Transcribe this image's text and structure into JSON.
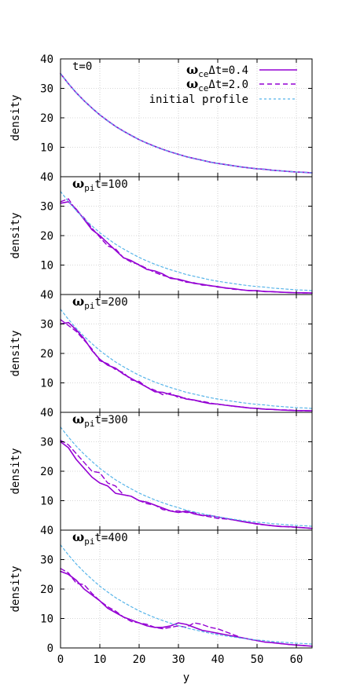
{
  "figure": {
    "x_axis_label": "y",
    "legend": {
      "entries": [
        {
          "prefix": "ω",
          "sub": "ce",
          "suffix": "Δt=0.4",
          "color": "#9400d3",
          "style": "solid"
        },
        {
          "prefix": "ω",
          "sub": "ce",
          "suffix": "Δt=2.0",
          "color": "#9400d3",
          "style": "dashed"
        },
        {
          "text": "initial profile",
          "color": "#56b4e9",
          "style": "dotted"
        }
      ]
    },
    "colors": {
      "dt04": "#9400d3",
      "dt20": "#9400d3",
      "initial": "#56b4e9",
      "grid": "#b0b0b0"
    }
  },
  "chart_data": [
    {
      "type": "line",
      "panel_label": {
        "text": "t=0"
      },
      "ylabel": "density",
      "xlim": [
        0,
        64
      ],
      "ylim": [
        0,
        40
      ],
      "grid": true,
      "legend_position": "top-right",
      "x_ticks": [
        0,
        10,
        20,
        30,
        40,
        50,
        60
      ],
      "y_tick_labels": [
        "10",
        "20",
        "30",
        "40"
      ],
      "x": [
        0,
        2,
        4,
        6,
        8,
        10,
        12,
        14,
        16,
        18,
        20,
        22,
        24,
        26,
        28,
        30,
        32,
        34,
        36,
        38,
        40,
        42,
        44,
        46,
        48,
        50,
        52,
        54,
        56,
        58,
        60,
        62,
        64
      ],
      "series": [
        {
          "name": "ωceΔt=0.4",
          "key": "dt04",
          "y": [
            35.0,
            31.6,
            28.5,
            25.8,
            23.3,
            21.0,
            19.0,
            17.1,
            15.5,
            14.0,
            12.6,
            11.4,
            10.3,
            9.3,
            8.4,
            7.6,
            6.8,
            6.2,
            5.6,
            5.0,
            4.5,
            4.1,
            3.7,
            3.3,
            3.0,
            2.7,
            2.5,
            2.2,
            2.0,
            1.8,
            1.6,
            1.5,
            1.3
          ]
        },
        {
          "name": "ωceΔt=2.0",
          "key": "dt20",
          "y": [
            35.0,
            31.6,
            28.5,
            25.8,
            23.3,
            21.0,
            19.0,
            17.1,
            15.5,
            14.0,
            12.6,
            11.4,
            10.3,
            9.3,
            8.4,
            7.6,
            6.8,
            6.2,
            5.6,
            5.0,
            4.5,
            4.1,
            3.7,
            3.3,
            3.0,
            2.7,
            2.5,
            2.2,
            2.0,
            1.8,
            1.6,
            1.5,
            1.3
          ]
        },
        {
          "name": "initial profile",
          "key": "initial",
          "y": [
            35.0,
            31.6,
            28.5,
            25.8,
            23.3,
            21.0,
            19.0,
            17.1,
            15.5,
            14.0,
            12.6,
            11.4,
            10.3,
            9.3,
            8.4,
            7.6,
            6.8,
            6.2,
            5.6,
            5.0,
            4.5,
            4.1,
            3.7,
            3.3,
            3.0,
            2.7,
            2.5,
            2.2,
            2.0,
            1.8,
            1.6,
            1.5,
            1.3
          ]
        }
      ]
    },
    {
      "type": "line",
      "panel_label": {
        "prefix": "ω",
        "sub": "pi",
        "suffix": "t=100"
      },
      "ylabel": "density",
      "xlim": [
        0,
        64
      ],
      "ylim": [
        0,
        40
      ],
      "grid": true,
      "x_ticks": [
        0,
        10,
        20,
        30,
        40,
        50,
        60
      ],
      "y_tick_labels": [
        "10",
        "20",
        "30",
        "40"
      ],
      "x": [
        0,
        2,
        4,
        6,
        8,
        10,
        12,
        14,
        16,
        18,
        20,
        22,
        24,
        26,
        28,
        30,
        32,
        34,
        36,
        38,
        40,
        42,
        44,
        46,
        48,
        50,
        52,
        54,
        56,
        58,
        60,
        62,
        64
      ],
      "series": [
        {
          "name": "ωceΔt=0.4",
          "key": "dt04",
          "y": [
            31.0,
            31.5,
            29.0,
            25.5,
            22.0,
            20.0,
            17.5,
            15.0,
            12.5,
            11.5,
            10.0,
            8.5,
            8.0,
            7.0,
            5.5,
            5.2,
            4.5,
            3.8,
            3.5,
            3.0,
            2.7,
            2.2,
            2.0,
            1.6,
            1.3,
            1.3,
            1.0,
            1.0,
            0.8,
            0.7,
            0.6,
            0.6,
            0.5
          ]
        },
        {
          "name": "ωceΔt=2.0",
          "key": "dt20",
          "y": [
            31.5,
            32.5,
            28.5,
            26.0,
            22.5,
            19.5,
            16.5,
            15.5,
            12.5,
            11.0,
            10.2,
            8.8,
            7.5,
            6.5,
            5.8,
            5.0,
            4.2,
            4.0,
            3.2,
            3.1,
            2.5,
            2.3,
            1.8,
            1.6,
            1.4,
            1.2,
            1.1,
            0.9,
            0.8,
            0.7,
            0.6,
            0.5,
            0.5
          ]
        },
        {
          "name": "initial profile",
          "key": "initial",
          "y": [
            35.0,
            31.6,
            28.5,
            25.8,
            23.3,
            21.0,
            19.0,
            17.1,
            15.5,
            14.0,
            12.6,
            11.4,
            10.3,
            9.3,
            8.4,
            7.6,
            6.8,
            6.2,
            5.6,
            5.0,
            4.5,
            4.1,
            3.7,
            3.3,
            3.0,
            2.7,
            2.5,
            2.2,
            2.0,
            1.8,
            1.6,
            1.5,
            1.3
          ]
        }
      ]
    },
    {
      "type": "line",
      "panel_label": {
        "prefix": "ω",
        "sub": "pi",
        "suffix": "t=200"
      },
      "ylabel": "density",
      "xlim": [
        0,
        64
      ],
      "ylim": [
        0,
        40
      ],
      "grid": true,
      "x_ticks": [
        0,
        10,
        20,
        30,
        40,
        50,
        60
      ],
      "y_tick_labels": [
        "10",
        "20",
        "30",
        "40"
      ],
      "x": [
        0,
        2,
        4,
        6,
        8,
        10,
        12,
        14,
        16,
        18,
        20,
        22,
        24,
        26,
        28,
        30,
        32,
        34,
        36,
        38,
        40,
        42,
        44,
        46,
        48,
        50,
        52,
        54,
        56,
        58,
        60,
        62,
        64
      ],
      "series": [
        {
          "name": "ωceΔt=0.4",
          "key": "dt04",
          "y": [
            30.0,
            30.5,
            28.0,
            25.0,
            21.0,
            18.0,
            16.0,
            15.0,
            13.0,
            11.5,
            10.0,
            8.5,
            7.0,
            6.8,
            6.0,
            5.5,
            4.5,
            4.2,
            3.5,
            3.0,
            2.8,
            2.4,
            2.1,
            1.8,
            1.5,
            1.3,
            1.1,
            1.0,
            0.8,
            0.7,
            0.6,
            0.6,
            0.5
          ]
        },
        {
          "name": "ωceΔt=2.0",
          "key": "dt20",
          "y": [
            31.5,
            29.5,
            27.5,
            24.5,
            21.5,
            17.5,
            16.5,
            14.5,
            13.5,
            11.0,
            10.5,
            8.5,
            7.5,
            6.0,
            6.5,
            5.0,
            4.8,
            4.0,
            3.8,
            3.2,
            2.7,
            2.5,
            2.0,
            1.9,
            1.4,
            1.4,
            1.0,
            1.0,
            0.8,
            0.8,
            0.6,
            0.5,
            0.5
          ]
        },
        {
          "name": "initial profile",
          "key": "initial",
          "y": [
            35.0,
            31.6,
            28.5,
            25.8,
            23.3,
            21.0,
            19.0,
            17.1,
            15.5,
            14.0,
            12.6,
            11.4,
            10.3,
            9.3,
            8.4,
            7.6,
            6.8,
            6.2,
            5.6,
            5.0,
            4.5,
            4.1,
            3.7,
            3.3,
            3.0,
            2.7,
            2.5,
            2.2,
            2.0,
            1.8,
            1.6,
            1.5,
            1.3
          ]
        }
      ]
    },
    {
      "type": "line",
      "panel_label": {
        "prefix": "ω",
        "sub": "pi",
        "suffix": "t=300"
      },
      "ylabel": "density",
      "xlim": [
        0,
        64
      ],
      "ylim": [
        0,
        40
      ],
      "grid": true,
      "x_ticks": [
        0,
        10,
        20,
        30,
        40,
        50,
        60
      ],
      "y_tick_labels": [
        "10",
        "20",
        "30",
        "40"
      ],
      "x": [
        0,
        2,
        4,
        6,
        8,
        10,
        12,
        14,
        16,
        18,
        20,
        22,
        24,
        26,
        28,
        30,
        32,
        34,
        36,
        38,
        40,
        42,
        44,
        46,
        48,
        50,
        52,
        54,
        56,
        58,
        60,
        62,
        64
      ],
      "series": [
        {
          "name": "ωceΔt=0.4",
          "key": "dt04",
          "y": [
            30.0,
            28.0,
            24.0,
            21.0,
            18.0,
            16.0,
            15.0,
            12.5,
            12.0,
            11.5,
            10.0,
            9.5,
            8.5,
            7.5,
            6.5,
            6.0,
            6.5,
            5.5,
            5.0,
            5.0,
            4.5,
            4.0,
            3.5,
            3.0,
            2.5,
            2.2,
            1.8,
            1.5,
            1.2,
            1.2,
            1.0,
            0.8,
            0.6
          ]
        },
        {
          "name": "ωceΔt=2.0",
          "key": "dt20",
          "y": [
            30.5,
            29.0,
            26.0,
            23.0,
            20.0,
            19.5,
            16.0,
            15.0,
            12.0,
            11.5,
            10.0,
            9.0,
            8.5,
            7.0,
            6.5,
            6.5,
            6.0,
            6.0,
            5.0,
            4.5,
            4.0,
            3.8,
            3.5,
            3.0,
            2.6,
            2.0,
            1.8,
            1.5,
            1.3,
            1.1,
            1.0,
            0.8,
            0.6
          ]
        },
        {
          "name": "initial profile",
          "key": "initial",
          "y": [
            35.0,
            31.6,
            28.5,
            25.8,
            23.3,
            21.0,
            19.0,
            17.1,
            15.5,
            14.0,
            12.6,
            11.4,
            10.3,
            9.3,
            8.4,
            7.6,
            6.8,
            6.2,
            5.6,
            5.0,
            4.5,
            4.1,
            3.7,
            3.3,
            3.0,
            2.7,
            2.5,
            2.2,
            2.0,
            1.8,
            1.6,
            1.5,
            1.3
          ]
        }
      ]
    },
    {
      "type": "line",
      "panel_label": {
        "prefix": "ω",
        "sub": "pi",
        "suffix": "t=400"
      },
      "ylabel": "density",
      "xlim": [
        0,
        64
      ],
      "ylim": [
        0,
        40
      ],
      "grid": true,
      "x_ticks": [
        0,
        10,
        20,
        30,
        40,
        50,
        60
      ],
      "x_tick_labels": [
        "0",
        "10",
        "20",
        "30",
        "40",
        "50",
        "60"
      ],
      "y_tick_labels": [
        "0",
        "10",
        "20",
        "30",
        "40"
      ],
      "x": [
        0,
        2,
        4,
        6,
        8,
        10,
        12,
        14,
        16,
        18,
        20,
        22,
        24,
        26,
        28,
        30,
        32,
        34,
        36,
        38,
        40,
        42,
        44,
        46,
        48,
        50,
        52,
        54,
        56,
        58,
        60,
        62,
        64
      ],
      "series": [
        {
          "name": "ωceΔt=0.4",
          "key": "dt04",
          "y": [
            26.0,
            25.0,
            23.0,
            20.0,
            18.0,
            16.0,
            13.5,
            12.0,
            10.5,
            9.5,
            8.5,
            7.5,
            7.0,
            7.0,
            7.5,
            8.5,
            8.0,
            7.0,
            6.0,
            5.5,
            5.0,
            4.5,
            4.0,
            3.5,
            3.0,
            2.5,
            2.0,
            1.8,
            1.5,
            1.2,
            1.0,
            0.8,
            0.6
          ]
        },
        {
          "name": "ωceΔt=2.0",
          "key": "dt20",
          "y": [
            27.0,
            25.5,
            22.0,
            21.5,
            18.5,
            16.0,
            14.0,
            12.5,
            10.5,
            9.0,
            8.5,
            8.0,
            7.0,
            6.5,
            7.0,
            7.5,
            7.0,
            8.5,
            8.0,
            7.0,
            6.5,
            5.5,
            4.5,
            3.5,
            3.0,
            2.5,
            2.0,
            1.8,
            1.5,
            1.2,
            1.0,
            0.8,
            0.6
          ]
        },
        {
          "name": "initial profile",
          "key": "initial",
          "y": [
            35.0,
            31.6,
            28.5,
            25.8,
            23.3,
            21.0,
            19.0,
            17.1,
            15.5,
            14.0,
            12.6,
            11.4,
            10.3,
            9.3,
            8.4,
            7.6,
            6.8,
            6.2,
            5.6,
            5.0,
            4.5,
            4.1,
            3.7,
            3.3,
            3.0,
            2.7,
            2.5,
            2.2,
            2.0,
            1.8,
            1.6,
            1.5,
            1.3
          ]
        }
      ]
    }
  ]
}
